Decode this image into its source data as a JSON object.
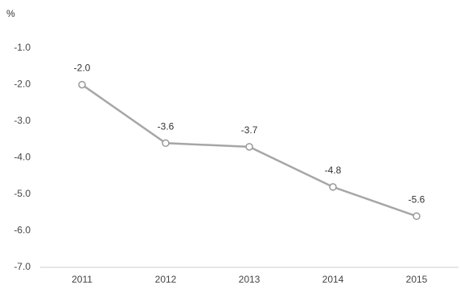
{
  "chart_data": {
    "type": "line",
    "y_label": "%",
    "categories": [
      "2011",
      "2012",
      "2013",
      "2014",
      "2015"
    ],
    "values": [
      -2.0,
      -3.6,
      -3.7,
      -4.8,
      -5.6
    ],
    "value_labels": [
      "-2.0",
      "-3.6",
      "-3.7",
      "-4.8",
      "-5.6"
    ],
    "color": "#a6a6a6",
    "ylim": [
      -7,
      -1
    ],
    "yticks": [
      {
        "value": -1,
        "label": "-1.0"
      },
      {
        "value": -2,
        "label": "-2.0"
      },
      {
        "value": -3,
        "label": "-3.0"
      },
      {
        "value": -4,
        "label": "-4.0"
      },
      {
        "value": -5,
        "label": "-5.0"
      },
      {
        "value": -6,
        "label": "-6.0"
      },
      {
        "value": -7,
        "label": "-7.0"
      }
    ],
    "grid": false
  }
}
